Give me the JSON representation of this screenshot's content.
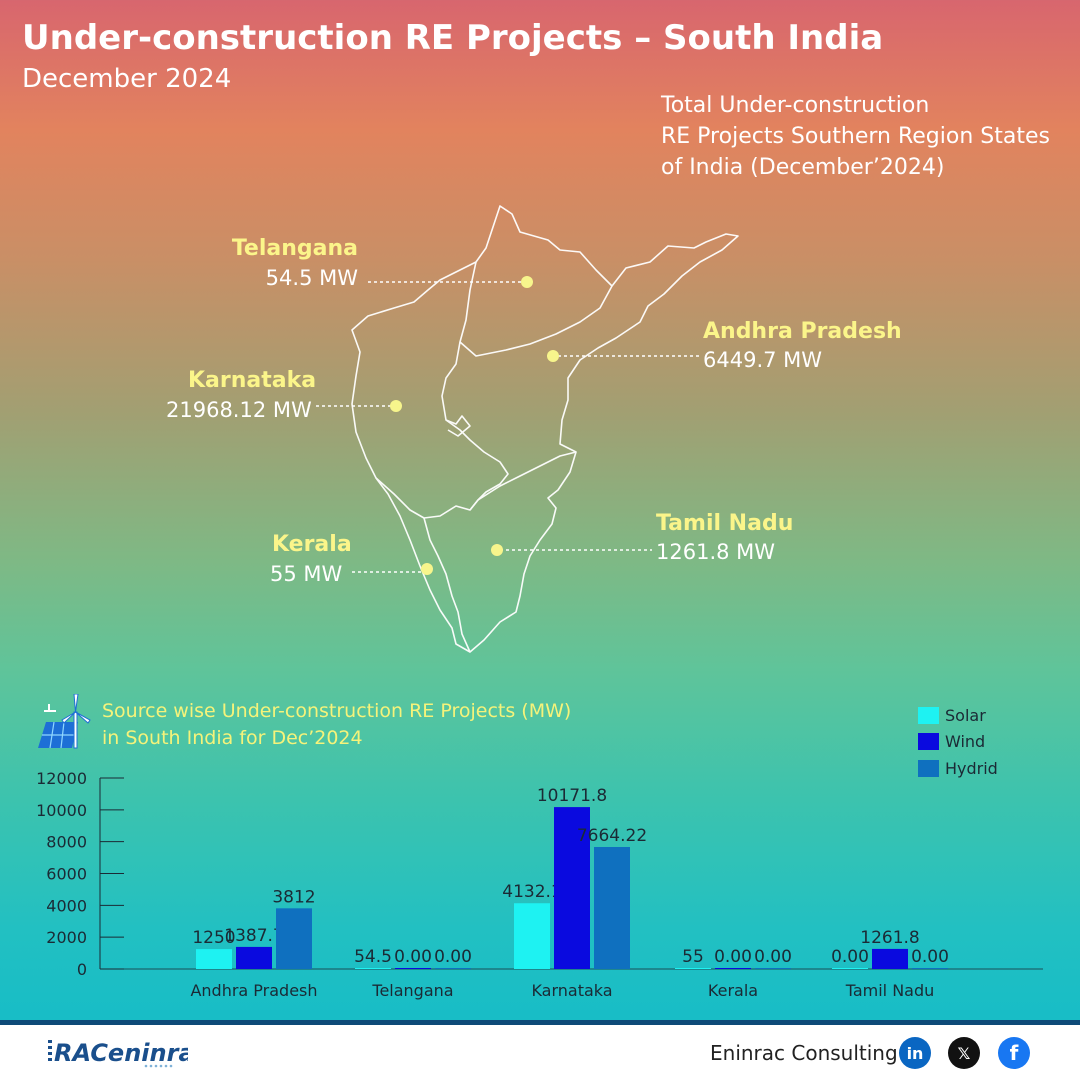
{
  "header": {
    "title": "Under-construction RE Projects – South India",
    "subtitle": "December 2024"
  },
  "map": {
    "title_lines": [
      "Total Under-construction",
      "RE Projects Southern Region States",
      "of India (December’2024)"
    ],
    "states": [
      {
        "name": "Telangana",
        "value": "54.5 MW"
      },
      {
        "name": "Andhra Pradesh",
        "value": "6449.7 MW"
      },
      {
        "name": "Karnataka",
        "value": "21968.12 MW"
      },
      {
        "name": "Kerala",
        "value": "55 MW"
      },
      {
        "name": "Tamil Nadu",
        "value": "1261.8 MW"
      }
    ],
    "marker_color": "#f7f58c"
  },
  "chart_heading": [
    "Source wise Under-construction RE Projects (MW)",
    "in South India for Dec’2024"
  ],
  "chart_data": {
    "type": "bar",
    "categories": [
      "Andhra Pradesh",
      "Telangana",
      "Karnataka",
      "Kerala",
      "Tamil Nadu"
    ],
    "series": [
      {
        "name": "Solar",
        "color": "#1ef2f2",
        "values": [
          1250,
          54.5,
          4132.1,
          55,
          0
        ],
        "labels": [
          "1250",
          "54.5",
          "4132.1",
          "55",
          "0.00"
        ]
      },
      {
        "name": "Wind",
        "color": "#0a0adf",
        "values": [
          1387.7,
          0,
          10171.8,
          0,
          1261.8
        ],
        "labels": [
          "1387.7",
          "0.00",
          "10171.8",
          "0.00",
          "1261.8"
        ]
      },
      {
        "name": "Hydrid",
        "color": "#0f70bf",
        "values": [
          3812,
          0,
          7664.22,
          0,
          0
        ],
        "labels": [
          "3812",
          "0.00",
          "7664.22",
          "0.00",
          "0.00"
        ]
      }
    ],
    "yticks": [
      0,
      2000,
      4000,
      6000,
      8000,
      10000,
      12000
    ],
    "ylim": [
      0,
      12000
    ],
    "legend_position": "top-right",
    "grid": false
  },
  "footer": {
    "logo_text": "RACeninrac",
    "brand": "Eninrac Consulting",
    "social": [
      {
        "icon": "linkedin-icon",
        "glyph": "in",
        "color": "#0a66c2"
      },
      {
        "icon": "x-icon",
        "glyph": "𝕏",
        "color": "#111111"
      },
      {
        "icon": "facebook-icon",
        "glyph": "f",
        "color": "#1877f2"
      }
    ]
  }
}
